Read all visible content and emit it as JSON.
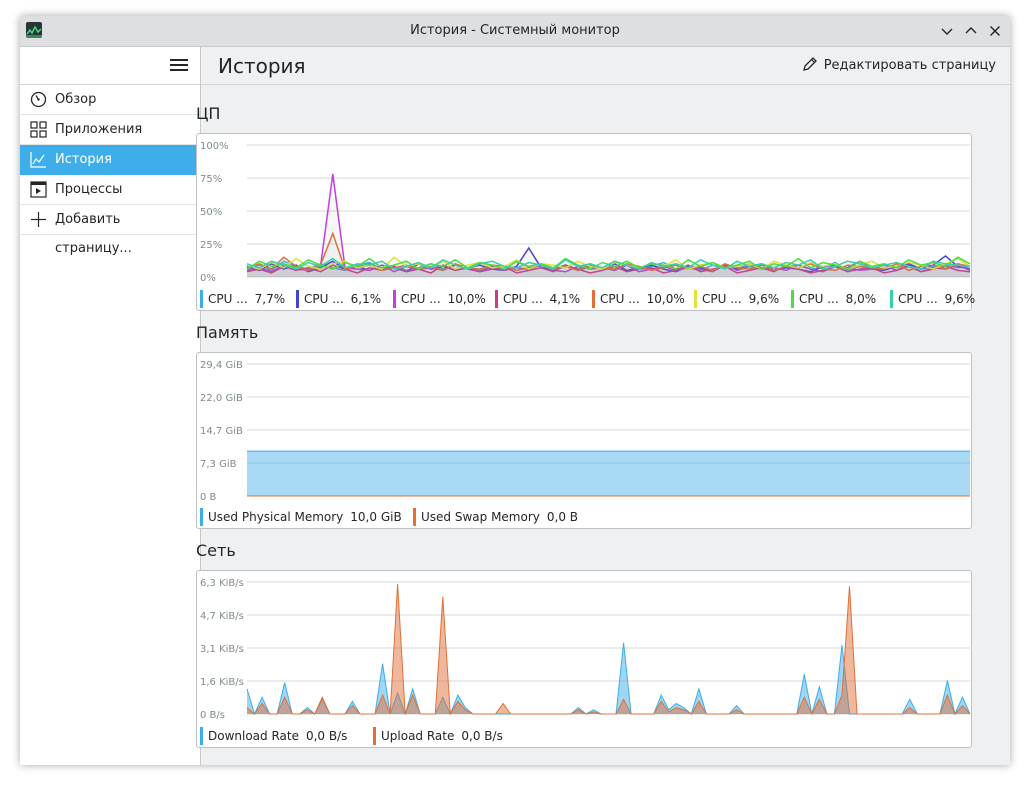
{
  "window": {
    "title": "История - Системный монитор"
  },
  "sidebar": {
    "items": [
      {
        "label": "Обзор",
        "icon": "gauge-icon"
      },
      {
        "label": "Приложения",
        "icon": "apps-grid-icon"
      },
      {
        "label": "История",
        "icon": "chart-icon",
        "active": true
      },
      {
        "label": "Процессы",
        "icon": "process-icon"
      },
      {
        "label": "Добавить страницу...",
        "icon": "plus-icon"
      }
    ]
  },
  "header": {
    "title": "История",
    "edit_label": "Редактировать страницу"
  },
  "sections": {
    "cpu": "ЦП",
    "memory": "Память",
    "network": "Сеть"
  },
  "colors": {
    "accent": "#3daee9",
    "cpu": [
      "#3daee9",
      "#4343d6",
      "#c43ee0",
      "#d0388e",
      "#e07038",
      "#dfe33e",
      "#49e03e",
      "#38d0aa"
    ],
    "memory": [
      "#3daee9",
      "#e07038"
    ],
    "network": [
      "#3daee9",
      "#e07038"
    ]
  },
  "chart_data": [
    {
      "type": "line",
      "title": "ЦП",
      "y_ticks": [
        "100%",
        "75%",
        "50%",
        "25%",
        "0%"
      ],
      "ylim": [
        0,
        100
      ],
      "x": [
        0,
        1,
        2,
        3,
        4,
        5,
        6,
        7,
        8,
        9,
        10,
        11,
        12,
        13,
        14,
        15,
        16,
        17,
        18,
        19,
        20,
        21,
        22,
        23,
        24,
        25,
        26,
        27,
        28,
        29,
        30,
        31,
        32,
        33,
        34,
        35,
        36,
        37,
        38,
        39,
        40,
        41,
        42,
        43,
        44,
        45,
        46,
        47,
        48,
        49,
        50,
        51,
        52,
        53,
        54,
        55,
        56,
        57,
        58,
        59
      ],
      "series": [
        {
          "name": "CPU ...",
          "value_label": "7,7%",
          "values": [
            6,
            9,
            5,
            12,
            8,
            6,
            10,
            7,
            5,
            9,
            11,
            6,
            8,
            5,
            7,
            10,
            6,
            9,
            7,
            5,
            8,
            6,
            12,
            7,
            9,
            5,
            8,
            6,
            10,
            7,
            5,
            9,
            6,
            8,
            11,
            6,
            7,
            5,
            9,
            8,
            6,
            10,
            7,
            5,
            8,
            9,
            6,
            7,
            11,
            5,
            8,
            6,
            9,
            7,
            10,
            6,
            8,
            9,
            7,
            8
          ]
        },
        {
          "name": "CPU ...",
          "value_label": "6,1%",
          "values": [
            8,
            5,
            10,
            6,
            9,
            4,
            7,
            12,
            6,
            8,
            5,
            9,
            7,
            4,
            10,
            6,
            8,
            5,
            7,
            9,
            6,
            5,
            8,
            22,
            7,
            6,
            9,
            5,
            8,
            6,
            10,
            5,
            7,
            9,
            6,
            4,
            8,
            7,
            5,
            9,
            6,
            8,
            10,
            5,
            7,
            6,
            4,
            8,
            9,
            7,
            12,
            6,
            5,
            8,
            10,
            6,
            9,
            16,
            8,
            6
          ]
        },
        {
          "name": "CPU ...",
          "value_label": "10,0%",
          "values": [
            5,
            7,
            4,
            9,
            6,
            5,
            8,
            78,
            7,
            6,
            5,
            9,
            4,
            8,
            6,
            7,
            5,
            9,
            6,
            4,
            8,
            5,
            7,
            6,
            9,
            5,
            4,
            8,
            6,
            7,
            5,
            9,
            4,
            6,
            8,
            5,
            7,
            6,
            4,
            9,
            5,
            8,
            6,
            7,
            5,
            9,
            6,
            4,
            8,
            7,
            5,
            6,
            9,
            5,
            8,
            4,
            7,
            6,
            9,
            5
          ]
        },
        {
          "name": "CPU ...",
          "value_label": "4,1%",
          "values": [
            4,
            6,
            3,
            8,
            5,
            7,
            4,
            9,
            6,
            3,
            7,
            5,
            8,
            4,
            6,
            3,
            9,
            5,
            7,
            4,
            6,
            8,
            3,
            5,
            7,
            4,
            9,
            6,
            3,
            5,
            8,
            4,
            6,
            7,
            3,
            5,
            9,
            4,
            6,
            8,
            3,
            5,
            7,
            4,
            9,
            6,
            3,
            5,
            8,
            4,
            6,
            7,
            3,
            5,
            9,
            4,
            6,
            8,
            5,
            4
          ]
        },
        {
          "name": "CPU ...",
          "value_label": "10,0%",
          "values": [
            7,
            10,
            6,
            15,
            8,
            5,
            9,
            33,
            6,
            8,
            10,
            5,
            7,
            9,
            6,
            8,
            5,
            10,
            7,
            6,
            9,
            8,
            5,
            7,
            10,
            6,
            8,
            5,
            9,
            7,
            6,
            10,
            8,
            5,
            7,
            9,
            6,
            8,
            5,
            10,
            7,
            6,
            9,
            5,
            8,
            7,
            10,
            6,
            5,
            9,
            8,
            7,
            6,
            10,
            5,
            8,
            9,
            6,
            10,
            8
          ]
        },
        {
          "name": "CPU ...",
          "value_label": "9,6%",
          "values": [
            9,
            6,
            11,
            7,
            14,
            8,
            6,
            10,
            12,
            7,
            9,
            6,
            15,
            8,
            10,
            7,
            12,
            6,
            9,
            11,
            7,
            8,
            13,
            6,
            10,
            9,
            7,
            12,
            8,
            6,
            11,
            9,
            7,
            10,
            8,
            13,
            6,
            9,
            11,
            7,
            8,
            10,
            6,
            12,
            9,
            7,
            11,
            8,
            10,
            6,
            9,
            12,
            7,
            8,
            11,
            9,
            6,
            10,
            14,
            8
          ]
        },
        {
          "name": "CPU ...",
          "value_label": "8,0%",
          "values": [
            6,
            12,
            8,
            10,
            7,
            13,
            9,
            6,
            11,
            8,
            14,
            7,
            9,
            12,
            6,
            10,
            8,
            13,
            7,
            11,
            9,
            6,
            12,
            8,
            10,
            7,
            14,
            9,
            6,
            11,
            8,
            12,
            7,
            10,
            9,
            6,
            13,
            8,
            11,
            7,
            9,
            12,
            6,
            10,
            8,
            14,
            7,
            11,
            9,
            6,
            12,
            8,
            10,
            7,
            13,
            9,
            11,
            8,
            15,
            10
          ]
        },
        {
          "name": "CPU ...",
          "value_label": "9,6%",
          "values": [
            10,
            7,
            12,
            9,
            6,
            11,
            8,
            14,
            7,
            10,
            9,
            12,
            6,
            8,
            11,
            7,
            13,
            9,
            6,
            10,
            12,
            8,
            7,
            11,
            9,
            6,
            13,
            8,
            10,
            7,
            12,
            9,
            6,
            11,
            8,
            10,
            7,
            13,
            9,
            6,
            12,
            8,
            10,
            7,
            11,
            9,
            13,
            6,
            8,
            12,
            10,
            7,
            9,
            11,
            8,
            6,
            12,
            10,
            9,
            8
          ]
        }
      ]
    },
    {
      "type": "area",
      "title": "Память",
      "y_ticks": [
        "29,4 GiB",
        "22,0 GiB",
        "14,7 GiB",
        "7,3 GiB",
        "0 B"
      ],
      "ylim": [
        0,
        29.4
      ],
      "series": [
        {
          "name": "Used Physical Memory",
          "value_label": "10,0 GiB",
          "values": [
            10,
            10
          ]
        },
        {
          "name": "Used Swap Memory",
          "value_label": "0,0 B",
          "values": [
            0,
            0
          ]
        }
      ]
    },
    {
      "type": "area",
      "title": "Сеть",
      "y_ticks": [
        "6,3 KiB/s",
        "4,7 KiB/s",
        "3,1 KiB/s",
        "1,6 KiB/s",
        "0 B/s"
      ],
      "ylim": [
        0,
        6.3
      ],
      "series": [
        {
          "name": "Download Rate",
          "value_label": "0,0 B/s",
          "values": [
            1.2,
            0,
            0.8,
            0,
            0,
            1.5,
            0,
            0,
            0.3,
            0,
            0.7,
            0,
            0,
            0,
            0.6,
            0,
            0,
            0,
            2.4,
            0,
            1.0,
            0,
            1.2,
            0,
            0,
            0,
            0.8,
            0,
            0.9,
            0.3,
            0,
            0,
            0,
            0,
            0,
            0,
            0,
            0,
            0,
            0,
            0,
            0,
            0,
            0,
            0.3,
            0,
            0.2,
            0,
            0,
            0,
            3.4,
            0,
            0,
            0,
            0,
            0.9,
            0.2,
            0.5,
            0.3,
            0,
            1.2,
            0,
            0,
            0,
            0,
            0.4,
            0,
            0,
            0,
            0,
            0,
            0,
            0,
            0,
            1.9,
            0,
            1.3,
            0,
            0,
            3.3,
            0,
            0,
            0,
            0,
            0,
            0,
            0,
            0,
            0.7,
            0,
            0,
            0,
            0,
            1.6,
            0,
            0.8,
            0
          ]
        },
        {
          "name": "Upload Rate",
          "value_label": "0,0 B/s",
          "values": [
            0.3,
            0,
            0.5,
            0,
            0,
            0.8,
            0,
            0,
            0.2,
            0,
            0.8,
            0,
            0,
            0,
            0.4,
            0,
            0,
            0,
            0.9,
            0,
            6.2,
            0,
            0.9,
            0,
            0,
            0,
            5.6,
            0,
            0.6,
            0.2,
            0,
            0,
            0,
            0,
            0.5,
            0,
            0,
            0,
            0,
            0,
            0,
            0,
            0,
            0,
            0.2,
            0,
            0.1,
            0,
            0,
            0,
            0.7,
            0,
            0,
            0,
            0,
            0.6,
            0.1,
            0.3,
            0.2,
            0,
            0.6,
            0,
            0,
            0,
            0,
            0.2,
            0,
            0,
            0,
            0,
            0,
            0,
            0,
            0,
            0.8,
            0,
            0.7,
            0,
            0,
            0.9,
            6.1,
            0,
            0,
            0,
            0,
            0,
            0,
            0,
            0.3,
            0,
            0,
            0,
            0,
            0.9,
            0,
            0.4,
            0
          ]
        }
      ]
    }
  ]
}
